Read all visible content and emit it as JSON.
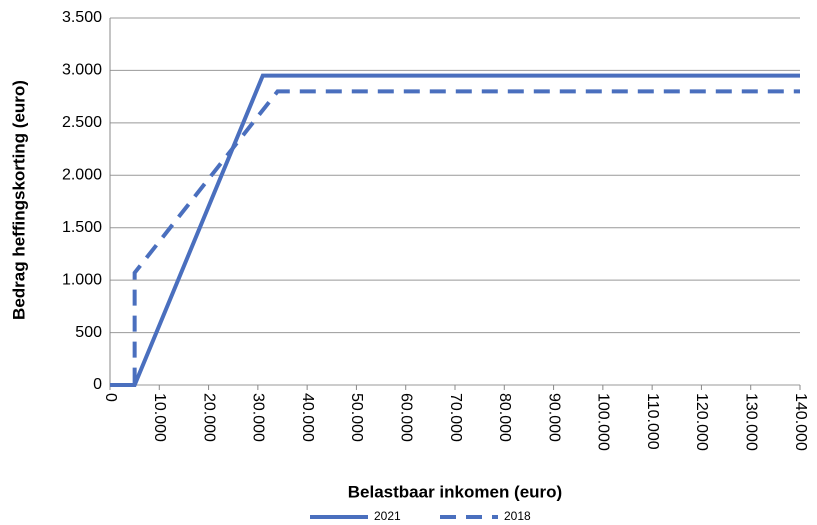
{
  "chart_data": {
    "type": "line",
    "xlabel": "Belastbaar inkomen (euro)",
    "ylabel": "Bedrag heffingskorting (euro)",
    "series": [
      {
        "name": "2021",
        "color": "#4a6fbe",
        "dashed": false,
        "x": [
          0,
          5000,
          31000,
          140000
        ],
        "values": [
          0,
          0,
          2950,
          2950
        ]
      },
      {
        "name": "2018",
        "color": "#4a6fbe",
        "dashed": true,
        "x": [
          0,
          5000,
          5000,
          34000,
          140000
        ],
        "values": [
          0,
          0,
          1070,
          2800,
          2800
        ]
      }
    ],
    "xlim": [
      0,
      140000
    ],
    "xticks": [
      0,
      {
        "value": 10000,
        "label": "10.000"
      },
      {
        "value": 20000,
        "label": "20.000"
      },
      {
        "value": 30000,
        "label": "30.000"
      },
      {
        "value": 40000,
        "label": "40.000"
      },
      {
        "value": 50000,
        "label": "50.000"
      },
      {
        "value": 60000,
        "label": "60.000"
      },
      {
        "value": 70000,
        "label": "70.000"
      },
      {
        "value": 80000,
        "label": "80.000"
      },
      {
        "value": 90000,
        "label": "90.000"
      },
      {
        "value": 100000,
        "label": "100.000"
      },
      {
        "value": 110000,
        "label": "110.000"
      },
      {
        "value": 120000,
        "label": "120.000"
      },
      {
        "value": 130000,
        "label": "130.000"
      },
      {
        "value": 140000,
        "label": "140.000"
      }
    ],
    "ylim": [
      0,
      3500
    ],
    "yticks": [
      0,
      500,
      {
        "value": 1000,
        "label": "1.000"
      },
      {
        "value": 1500,
        "label": "1.500"
      },
      {
        "value": 2000,
        "label": "2.000"
      },
      {
        "value": 2500,
        "label": "2.500"
      },
      {
        "value": 3000,
        "label": "3.000"
      },
      {
        "value": 3500,
        "label": "3.500"
      }
    ],
    "grid": true,
    "legend": "bottom"
  }
}
